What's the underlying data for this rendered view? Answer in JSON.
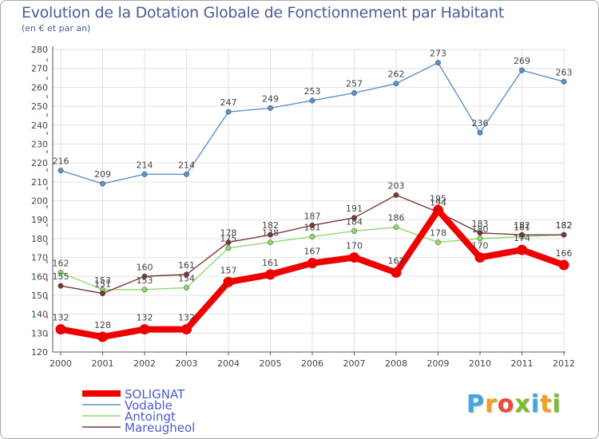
{
  "title": "Evolution de la Dotation Globale de Fonctionnement par Habitant",
  "subtitle": "(en € et par an)",
  "logo": {
    "text": "Proxiti",
    "colors": [
      "#3da8e0",
      "#f0a01e",
      "#e84a3c",
      "#7dbb2a",
      "#3da8e0",
      "#f0a01e",
      "#7dbb2a"
    ]
  },
  "chart_data": {
    "type": "line",
    "title": "Evolution de la Dotation Globale de Fonctionnement par Habitant",
    "subtitle": "(en € et par an)",
    "xlabel": "",
    "ylabel": "",
    "x": [
      "2000",
      "2001",
      "2002",
      "2003",
      "2004",
      "2005",
      "2006",
      "2007",
      "2008",
      "2009",
      "2010",
      "2011",
      "2012"
    ],
    "ylim": [
      120,
      280
    ],
    "yticks": [
      120,
      130,
      140,
      150,
      160,
      170,
      180,
      190,
      200,
      210,
      220,
      230,
      240,
      250,
      260,
      270,
      280
    ],
    "grid": true,
    "legend_position": "bottom-left",
    "series": [
      {
        "name": "SOLIGNAT",
        "color": "#ee0000",
        "values": [
          132,
          128,
          132,
          132,
          157,
          161,
          167,
          170,
          162,
          195,
          170,
          174,
          166
        ]
      },
      {
        "name": "Vodable",
        "color": "#5b92c8",
        "values": [
          216,
          209,
          214,
          214,
          247,
          249,
          253,
          257,
          262,
          273,
          236,
          269,
          263
        ]
      },
      {
        "name": "Antoingt",
        "color": "#8fd86b",
        "values": [
          162,
          153,
          153,
          154,
          175,
          178,
          181,
          184,
          186,
          178,
          180,
          181,
          182
        ]
      },
      {
        "name": "Mareugheol",
        "color": "#7a3838",
        "values": [
          155,
          151,
          160,
          161,
          178,
          182,
          187,
          191,
          203,
          194,
          183,
          182,
          182
        ]
      }
    ]
  }
}
